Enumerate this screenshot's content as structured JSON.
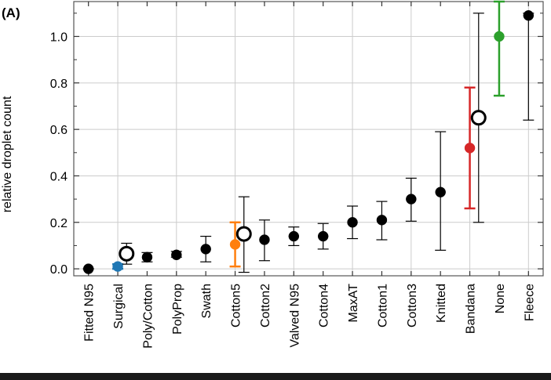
{
  "panel_label": "(A)",
  "chart_data": {
    "type": "scatter",
    "ylabel": "relative droplet count",
    "xlabel": "",
    "ylim": [
      -0.03,
      1.15
    ],
    "yticks": [
      "0.0",
      "0.2",
      "0.4",
      "0.6",
      "0.8",
      "1.0"
    ],
    "grid": true,
    "categories": [
      "Fitted N95",
      "Surgical",
      "Poly/Cotton",
      "PolyProp",
      "Swath",
      "Cotton5",
      "Cotton2",
      "Valved N95",
      "Cotton4",
      "MaxAT",
      "Cotton1",
      "Cotton3",
      "Knitted",
      "Bandana",
      "None",
      "Fleece"
    ],
    "points": [
      {
        "category": "Fitted N95",
        "value": 0.0,
        "low": 0.0,
        "high": 0.0,
        "color": "#000000"
      },
      {
        "category": "Surgical",
        "value": 0.01,
        "low": 0.0,
        "high": 0.02,
        "color": "#1f77b4"
      },
      {
        "category": "Poly/Cotton",
        "value": 0.05,
        "low": 0.03,
        "high": 0.07,
        "color": "#000000"
      },
      {
        "category": "PolyProp",
        "value": 0.06,
        "low": 0.05,
        "high": 0.075,
        "color": "#000000"
      },
      {
        "category": "Swath",
        "value": 0.085,
        "low": 0.03,
        "high": 0.14,
        "color": "#000000"
      },
      {
        "category": "Cotton5",
        "value": 0.105,
        "low": 0.01,
        "high": 0.2,
        "color": "#ff7f0e"
      },
      {
        "category": "Cotton2",
        "value": 0.125,
        "low": 0.035,
        "high": 0.21,
        "color": "#000000"
      },
      {
        "category": "Valved N95",
        "value": 0.14,
        "low": 0.1,
        "high": 0.18,
        "color": "#000000"
      },
      {
        "category": "Cotton4",
        "value": 0.14,
        "low": 0.085,
        "high": 0.195,
        "color": "#000000"
      },
      {
        "category": "MaxAT",
        "value": 0.2,
        "low": 0.13,
        "high": 0.27,
        "color": "#000000"
      },
      {
        "category": "Cotton1",
        "value": 0.21,
        "low": 0.125,
        "high": 0.29,
        "color": "#000000"
      },
      {
        "category": "Cotton3",
        "value": 0.3,
        "low": 0.205,
        "high": 0.39,
        "color": "#000000"
      },
      {
        "category": "Knitted",
        "value": 0.33,
        "low": 0.08,
        "high": 0.59,
        "color": "#000000"
      },
      {
        "category": "Bandana",
        "value": 0.52,
        "low": 0.26,
        "high": 0.78,
        "color": "#d62728"
      },
      {
        "category": "None",
        "value": 1.0,
        "low": 0.745,
        "high": 1.15,
        "color": "#2ca02c"
      },
      {
        "category": "Fleece",
        "value": 1.09,
        "low": 0.64,
        "high": 1.1,
        "color": "#000000"
      }
    ],
    "open_markers": [
      {
        "x_position": 1.3,
        "value": 0.065,
        "low": 0.02,
        "high": 0.11
      },
      {
        "x_position": 5.3,
        "value": 0.15,
        "low": -0.015,
        "high": 0.31
      },
      {
        "x_position": 13.3,
        "value": 0.65,
        "low": 0.2,
        "high": 1.1
      }
    ]
  }
}
